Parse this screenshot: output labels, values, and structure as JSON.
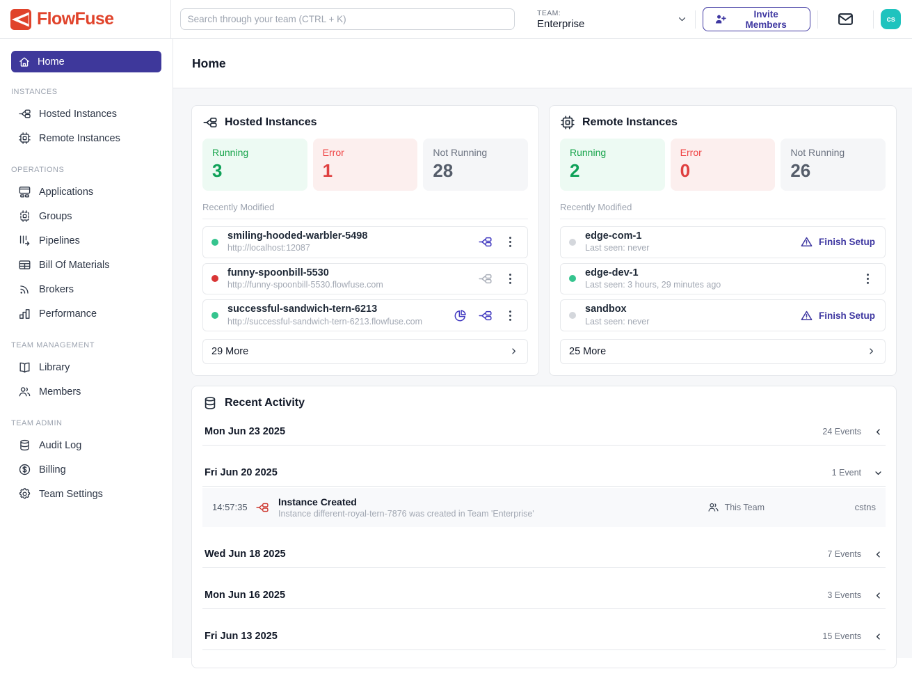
{
  "brand": {
    "name": "FlowFuse",
    "color": "#E0432B"
  },
  "colors": {
    "accent_indigo": "#3E37A1",
    "icon_indigo": "#4038C0",
    "running_green": "#16A34A",
    "error_red": "#EF4444",
    "avatar_teal": "#1FC3BE"
  },
  "header": {
    "search_placeholder": "Search through your team (CTRL + K)",
    "team_label": "TEAM:",
    "team_name": "Enterprise",
    "invite_button": "Invite Members",
    "avatar_initials": "cs"
  },
  "sidebar": {
    "home_label": "Home",
    "sections": [
      {
        "title": "INSTANCES",
        "items": [
          {
            "label": "Hosted Instances",
            "icon": "projects"
          },
          {
            "label": "Remote Instances",
            "icon": "chip"
          }
        ]
      },
      {
        "title": "OPERATIONS",
        "items": [
          {
            "label": "Applications",
            "icon": "apps"
          },
          {
            "label": "Groups",
            "icon": "groups"
          },
          {
            "label": "Pipelines",
            "icon": "pipelines"
          },
          {
            "label": "Bill Of Materials",
            "icon": "table"
          },
          {
            "label": "Brokers",
            "icon": "rss"
          },
          {
            "label": "Performance",
            "icon": "chart"
          }
        ]
      },
      {
        "title": "TEAM MANAGEMENT",
        "items": [
          {
            "label": "Library",
            "icon": "book"
          },
          {
            "label": "Members",
            "icon": "users"
          }
        ]
      },
      {
        "title": "TEAM ADMIN",
        "items": [
          {
            "label": "Audit Log",
            "icon": "db"
          },
          {
            "label": "Billing",
            "icon": "dollar"
          },
          {
            "label": "Team Settings",
            "icon": "gear"
          }
        ]
      }
    ]
  },
  "page": {
    "title": "Home"
  },
  "hosted": {
    "title": "Hosted Instances",
    "recently_modified_label": "Recently Modified",
    "stats": [
      {
        "label": "Running",
        "value": "3",
        "type": "running"
      },
      {
        "label": "Error",
        "value": "1",
        "type": "error"
      },
      {
        "label": "Not Running",
        "value": "28",
        "type": "idle"
      }
    ],
    "items": [
      {
        "name": "smiling-hooded-warbler-5498",
        "url": "http://localhost:12087",
        "status": "running",
        "icons": [
          "node-red",
          "kebab"
        ]
      },
      {
        "name": "funny-spoonbill-5530",
        "url": "http://funny-spoonbill-5530.flowfuse.com",
        "status": "error",
        "icons": [
          "node-red-disabled",
          "kebab"
        ]
      },
      {
        "name": "successful-sandwich-tern-6213",
        "url": "http://successful-sandwich-tern-6213.flowfuse.com",
        "status": "running",
        "icons": [
          "dashboard",
          "node-red",
          "kebab"
        ]
      }
    ],
    "more": "29 More"
  },
  "remote": {
    "title": "Remote Instances",
    "recently_modified_label": "Recently Modified",
    "finish_setup_label": "Finish Setup",
    "stats": [
      {
        "label": "Running",
        "value": "2",
        "type": "running"
      },
      {
        "label": "Error",
        "value": "0",
        "type": "error"
      },
      {
        "label": "Not Running",
        "value": "26",
        "type": "idle"
      }
    ],
    "items": [
      {
        "name": "edge-com-1",
        "last_seen": "Last seen: never",
        "status": "never",
        "action": "finish-setup"
      },
      {
        "name": "edge-dev-1",
        "last_seen": "Last seen: 3 hours, 29 minutes ago",
        "status": "running",
        "action": "menu"
      },
      {
        "name": "sandbox",
        "last_seen": "Last seen: never",
        "status": "never",
        "action": "finish-setup"
      }
    ],
    "more": "25 More"
  },
  "activity": {
    "title": "Recent Activity",
    "groups": [
      {
        "date": "Mon Jun 23 2025",
        "events_label": "24 Events",
        "expanded": false
      },
      {
        "date": "Fri Jun 20 2025",
        "events_label": "1 Event",
        "expanded": true,
        "events": [
          {
            "time": "14:57:35",
            "title": "Instance Created",
            "description": "Instance different-royal-tern-7876 was created in Team 'Enterprise'",
            "scope": "This Team",
            "user": "cstns"
          }
        ]
      },
      {
        "date": "Wed Jun 18 2025",
        "events_label": "7 Events",
        "expanded": false
      },
      {
        "date": "Mon Jun 16 2025",
        "events_label": "3 Events",
        "expanded": false
      },
      {
        "date": "Fri Jun 13 2025",
        "events_label": "15 Events",
        "expanded": false
      }
    ]
  }
}
